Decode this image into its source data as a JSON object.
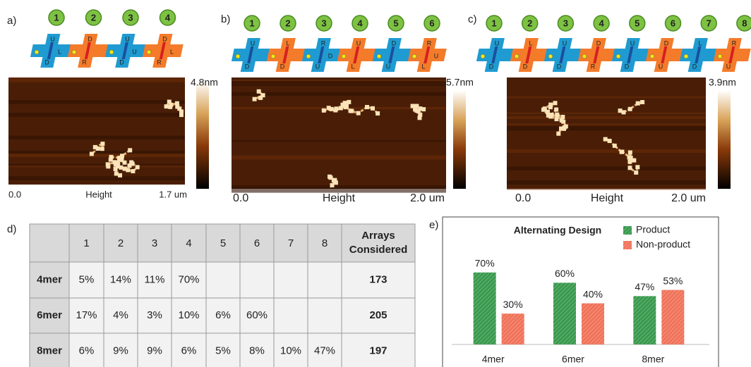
{
  "panels": [
    {
      "label": "a)",
      "tiles": [
        {
          "number": "1",
          "letters": [
            "U",
            "D",
            "L"
          ]
        },
        {
          "number": "2",
          "letters": [
            "D",
            "R"
          ]
        },
        {
          "number": "3",
          "letters": [
            "U",
            "D",
            "U"
          ]
        },
        {
          "number": "4",
          "letters": [
            "D",
            "R",
            "L"
          ]
        }
      ],
      "scale_max": "4.8nm",
      "scale_min": "0.0",
      "axis_label": "Height",
      "scale_length": "1.7 um"
    },
    {
      "label": "b)",
      "tiles": [
        {
          "number": "1",
          "letters": [
            "U",
            "D"
          ]
        },
        {
          "number": "2",
          "letters": [
            "L",
            "D"
          ]
        },
        {
          "number": "3",
          "letters": [
            "R",
            "U",
            "D"
          ]
        },
        {
          "number": "4",
          "letters": [
            "U",
            "L"
          ]
        },
        {
          "number": "5",
          "letters": [
            "D",
            "U"
          ]
        },
        {
          "number": "6",
          "letters": [
            "R",
            "L",
            "U"
          ]
        }
      ],
      "scale_max": "5.7nm",
      "scale_min": "0.0",
      "axis_label": "Height",
      "scale_length": "2.0 um"
    },
    {
      "label": "c)",
      "tiles": [
        {
          "number": "1",
          "letters": [
            "U",
            "D"
          ]
        },
        {
          "number": "2",
          "letters": [
            "L",
            "D"
          ]
        },
        {
          "number": "3",
          "letters": [
            "U",
            "D"
          ]
        },
        {
          "number": "4",
          "letters": [
            "D",
            "R"
          ]
        },
        {
          "number": "5",
          "letters": [
            "U",
            "D"
          ]
        },
        {
          "number": "6",
          "letters": [
            "D",
            "U"
          ]
        },
        {
          "number": "7",
          "letters": [
            "L",
            "D"
          ]
        },
        {
          "number": "8",
          "letters": [
            "R",
            "U"
          ]
        }
      ],
      "scale_max": "3.9nm",
      "scale_min": "0.0",
      "axis_label": "Height",
      "scale_length": "2.0 um"
    }
  ],
  "table": {
    "label": "d)",
    "header": [
      "1",
      "2",
      "3",
      "4",
      "5",
      "6",
      "7",
      "8",
      "Arrays Considered"
    ],
    "rows": [
      [
        "4mer",
        "5%",
        "14%",
        "11%",
        "70%",
        null,
        null,
        null,
        null,
        "173"
      ],
      [
        "6mer",
        "17%",
        "4%",
        "3%",
        "10%",
        "6%",
        "60%",
        null,
        null,
        "205"
      ],
      [
        "8mer",
        "6%",
        "9%",
        "9%",
        "6%",
        "5%",
        "8%",
        "10%",
        "47%",
        "197"
      ]
    ]
  },
  "chart_data": {
    "type": "bar",
    "label": "e)",
    "title": "Alternating Design",
    "categories": [
      "4mer",
      "6mer",
      "8mer"
    ],
    "series": [
      {
        "name": "Product",
        "color": "#3a9a4e",
        "values": [
          70,
          60,
          47
        ],
        "value_labels": [
          "70%",
          "60%",
          "47%"
        ]
      },
      {
        "name": "Non-product",
        "color": "#f0735a",
        "values": [
          30,
          40,
          53
        ],
        "value_labels": [
          "30%",
          "40%",
          "53%"
        ]
      }
    ],
    "ylim": [
      0,
      100
    ]
  }
}
